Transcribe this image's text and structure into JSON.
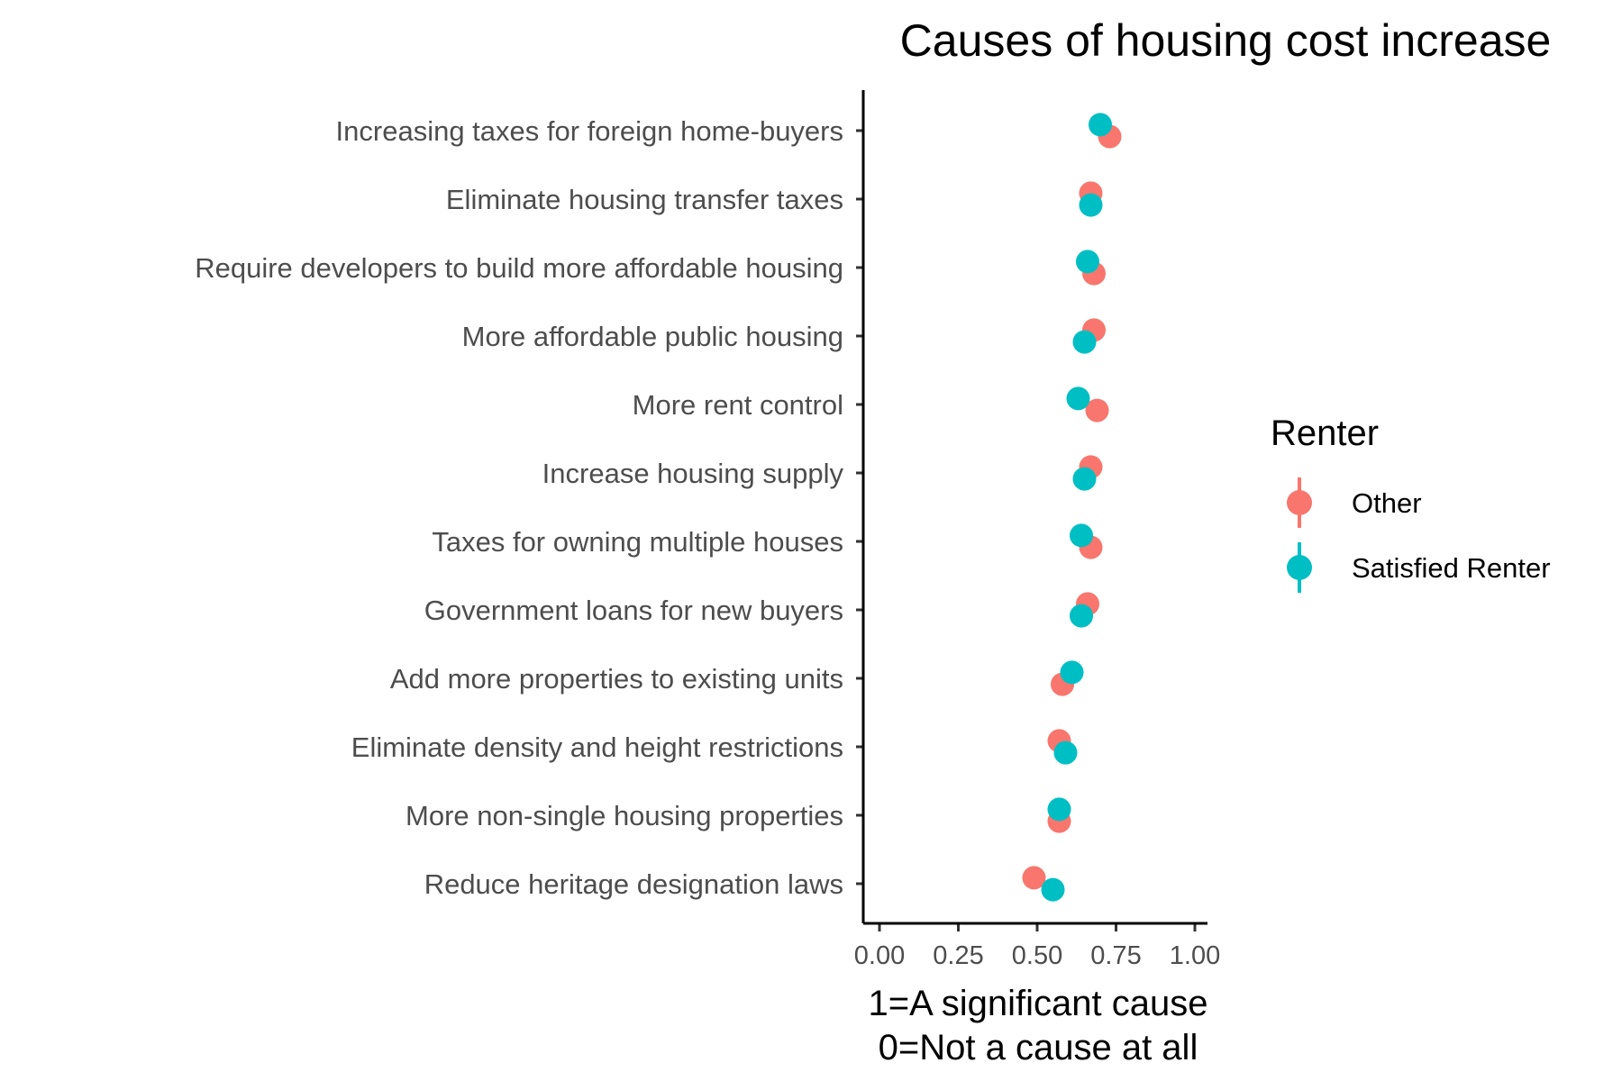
{
  "chart_data": {
    "type": "scatter",
    "title": "Causes of housing cost increase",
    "xlabel": [
      "1=A significant cause",
      "0=Not a cause at all"
    ],
    "ylabel": "",
    "xlim": [
      0,
      1
    ],
    "xticks": [
      "0.00",
      "0.25",
      "0.50",
      "0.75",
      "1.00"
    ],
    "xtick_values": [
      0,
      0.25,
      0.5,
      0.75,
      1
    ],
    "grid": false,
    "legend": {
      "title": "Renter",
      "position": "right"
    },
    "categories": [
      "Increasing taxes for foreign home-buyers",
      "Eliminate housing transfer taxes",
      "Require developers to build more affordable housing",
      "More affordable public housing",
      "More rent control",
      "Increase housing supply",
      "Taxes for owning multiple houses",
      "Government loans for new buyers",
      "Add more properties to existing units",
      "Eliminate density and height restrictions",
      "More non-single housing properties",
      "Reduce heritage designation laws"
    ],
    "series": [
      {
        "name": "Other",
        "color": "#F8766D",
        "values": [
          0.73,
          0.67,
          0.68,
          0.68,
          0.69,
          0.67,
          0.67,
          0.66,
          0.58,
          0.57,
          0.57,
          0.49
        ]
      },
      {
        "name": "Satisfied Renter",
        "color": "#00BFC4",
        "values": [
          0.7,
          0.67,
          0.66,
          0.65,
          0.63,
          0.65,
          0.64,
          0.64,
          0.61,
          0.59,
          0.57,
          0.55
        ]
      }
    ]
  }
}
